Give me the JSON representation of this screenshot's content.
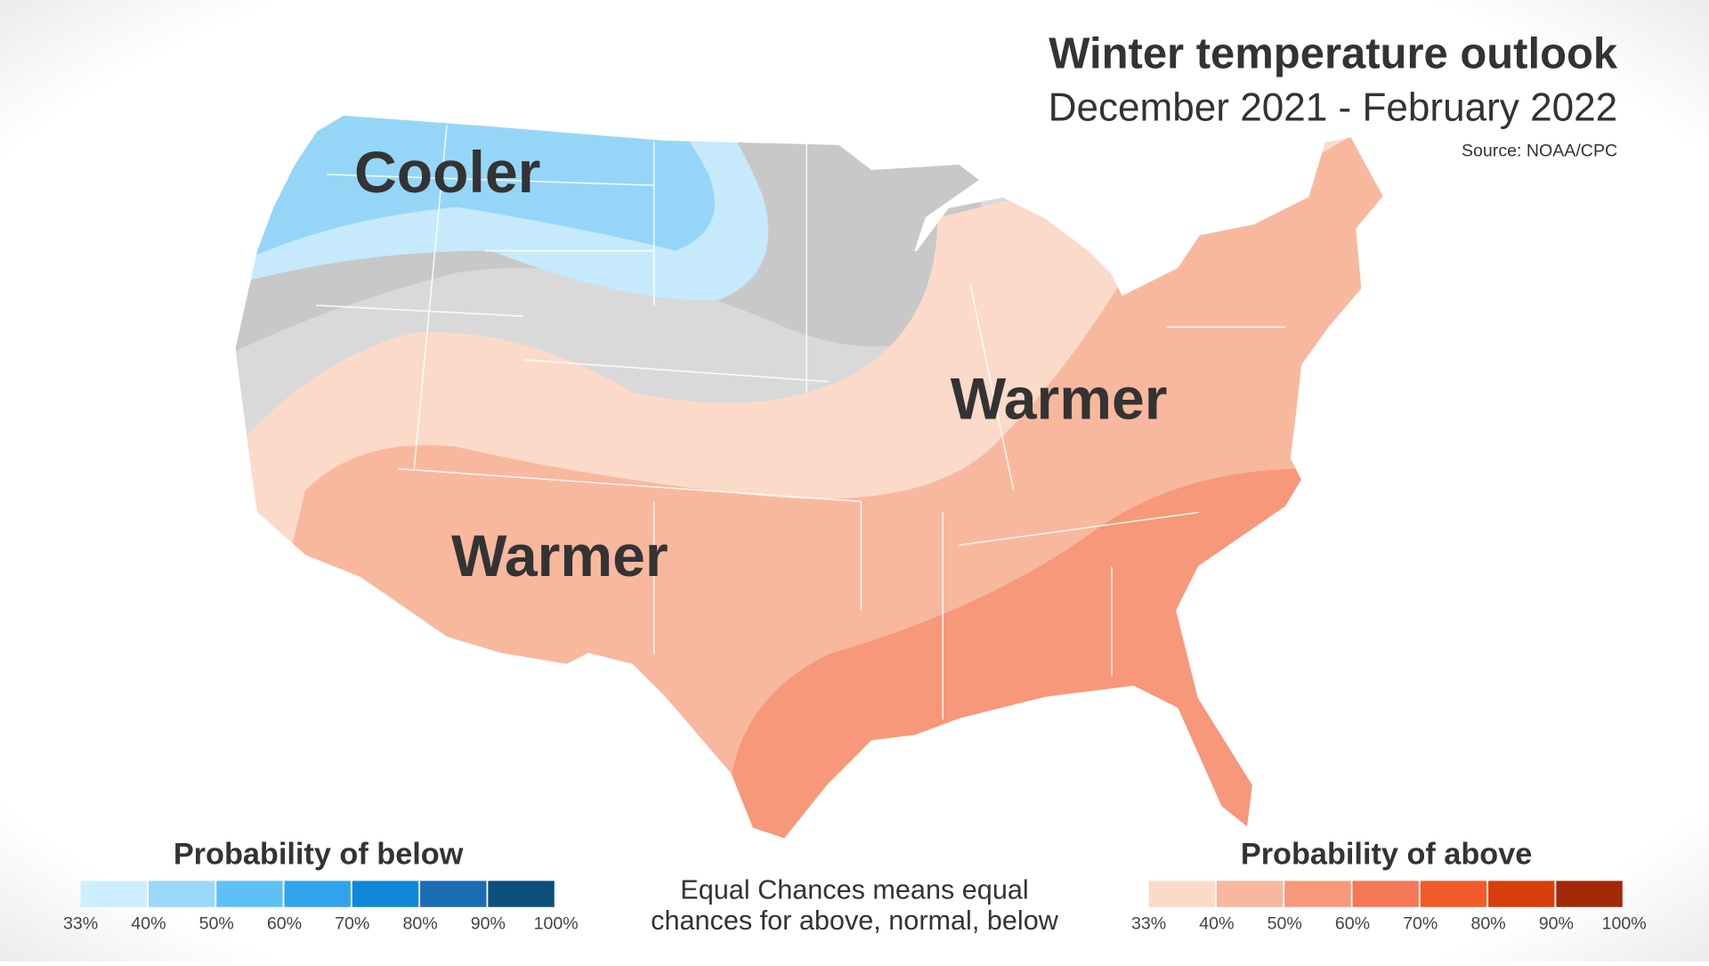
{
  "header": {
    "title": "Winter temperature outlook",
    "subtitle": "December 2021 - February 2022",
    "source": "Source: NOAA/CPC"
  },
  "map": {
    "labels": [
      "Cooler",
      "Warmer",
      "Warmer"
    ]
  },
  "legends": [
    {
      "title": "Probability of below",
      "colors": [
        "#cdeefd",
        "#9ad8f9",
        "#5fc0f5",
        "#2fa4ea",
        "#0f88d9",
        "#1b6cb4",
        "#0e4e7b"
      ],
      "labels": [
        "33%",
        "40%",
        "50%",
        "60%",
        "70%",
        "80%",
        "90%",
        "100%"
      ]
    },
    {
      "title": "Probability of above",
      "colors": [
        "#fcdac9",
        "#f8b89e",
        "#f69879",
        "#f47856",
        "#f25a2a",
        "#d83e0c",
        "#a02a0a"
      ],
      "labels": [
        "33%",
        "40%",
        "50%",
        "60%",
        "70%",
        "80%",
        "90%",
        "100%"
      ]
    }
  ],
  "note": [
    "Equal Chances means equal",
    "chances for above, normal, below"
  ]
}
